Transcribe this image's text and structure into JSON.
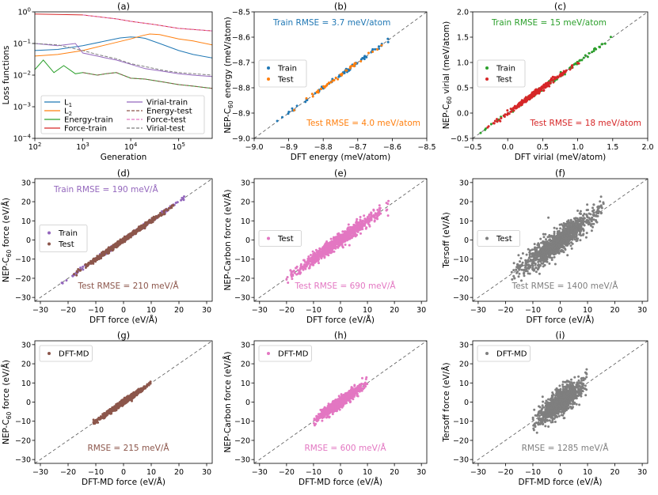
{
  "chart_data": [
    {
      "id": "a",
      "type": "line",
      "title": "(a)",
      "xlabel": "Generation",
      "ylabel": "Loss functions",
      "xscale": "log",
      "yscale": "log",
      "xlim": [
        100,
        500000
      ],
      "ylim": [
        0.0001,
        1
      ],
      "xticks": [
        100,
        1000,
        10000,
        100000
      ],
      "xtick_labels": [
        "10^2",
        "10^3",
        "10^4",
        "10^5"
      ],
      "yticks": [
        0.0001,
        0.001,
        0.01,
        0.1,
        1
      ],
      "ytick_labels": [
        "10^-4",
        "10^-3",
        "10^-2",
        "10^-1",
        "10^0"
      ],
      "legend": {
        "position": "lower-center",
        "entries": [
          {
            "label": "L1",
            "base": "L",
            "sub": "1",
            "color": "#1f77b4",
            "style": "solid"
          },
          {
            "label": "L2",
            "base": "L",
            "sub": "2",
            "color": "#ff7f0e",
            "style": "solid"
          },
          {
            "label": "Energy-train",
            "color": "#2ca02c",
            "style": "solid"
          },
          {
            "label": "Force-train",
            "color": "#d62728",
            "style": "solid"
          },
          {
            "label": "Virial-train",
            "color": "#9467bd",
            "style": "solid"
          },
          {
            "label": "Energy-test",
            "color": "#8c564b",
            "style": "dashed"
          },
          {
            "label": "Force-test",
            "color": "#e377c2",
            "style": "dashed"
          },
          {
            "label": "Virial-test",
            "color": "#7f7f7f",
            "style": "dashed"
          }
        ]
      },
      "series": [
        {
          "name": "L1",
          "color": "#1f77b4",
          "style": "solid",
          "x": [
            100,
            300,
            1000,
            3000,
            6000,
            10000,
            15000,
            20000,
            40000,
            100000,
            200000,
            500000
          ],
          "y": [
            0.06,
            0.065,
            0.085,
            0.12,
            0.15,
            0.16,
            0.155,
            0.145,
            0.1,
            0.06,
            0.045,
            0.035
          ]
        },
        {
          "name": "L2",
          "color": "#ff7f0e",
          "style": "solid",
          "x": [
            100,
            300,
            1000,
            3000,
            10000,
            18000,
            25000,
            40000,
            100000,
            200000,
            500000
          ],
          "y": [
            0.04,
            0.045,
            0.06,
            0.09,
            0.14,
            0.18,
            0.2,
            0.19,
            0.14,
            0.12,
            0.09
          ]
        },
        {
          "name": "Energy-train",
          "color": "#2ca02c",
          "style": "solid",
          "x": [
            100,
            150,
            250,
            400,
            700,
            1000,
            2000,
            3000,
            5000,
            10000,
            20000,
            50000,
            100000,
            200000,
            500000
          ],
          "y": [
            0.015,
            0.03,
            0.012,
            0.02,
            0.011,
            0.012,
            0.01,
            0.011,
            0.012,
            0.008,
            0.0075,
            0.006,
            0.005,
            0.0045,
            0.0038
          ]
        },
        {
          "name": "Force-train",
          "color": "#d62728",
          "style": "solid",
          "x": [
            100,
            1000,
            5000,
            10000,
            30000,
            100000,
            500000
          ],
          "y": [
            0.85,
            0.8,
            0.6,
            0.5,
            0.4,
            0.3,
            0.25
          ]
        },
        {
          "name": "Virial-train",
          "color": "#9467bd",
          "style": "solid",
          "x": [
            100,
            300,
            700,
            1000,
            2000,
            3000,
            5000,
            10000,
            20000,
            50000,
            100000,
            200000,
            500000
          ],
          "y": [
            0.1,
            0.085,
            0.1,
            0.05,
            0.04,
            0.035,
            0.03,
            0.022,
            0.016,
            0.013,
            0.011,
            0.01,
            0.009
          ]
        },
        {
          "name": "Energy-test",
          "color": "#8c564b",
          "style": "dashed",
          "x": [
            1000,
            2000,
            3000,
            5000,
            10000,
            20000,
            50000,
            100000,
            200000,
            500000
          ],
          "y": [
            0.012,
            0.01,
            0.011,
            0.012,
            0.008,
            0.0075,
            0.006,
            0.005,
            0.0045,
            0.0038
          ]
        },
        {
          "name": "Force-test",
          "color": "#e377c2",
          "style": "dashed",
          "x": [
            1000,
            5000,
            10000,
            30000,
            100000,
            500000
          ],
          "y": [
            0.8,
            0.6,
            0.5,
            0.4,
            0.3,
            0.25
          ]
        },
        {
          "name": "Virial-test",
          "color": "#7f7f7f",
          "style": "dashed",
          "x": [
            100,
            300,
            1000,
            2000,
            5000,
            10000,
            50000,
            100000,
            500000
          ],
          "y": [
            0.1,
            0.09,
            0.06,
            0.045,
            0.033,
            0.023,
            0.014,
            0.012,
            0.01
          ]
        }
      ]
    },
    {
      "id": "b",
      "type": "scatter",
      "title": "(b)",
      "xlabel": "DFT energy (meV/atom)",
      "ylabel": "NEP-C60 energy (meV/atom)",
      "ylabel_parts": [
        "NEP-C",
        "60",
        " energy (meV/atom)"
      ],
      "xlim": [
        -9.0,
        -8.5
      ],
      "ylim": [
        -9.0,
        -8.5
      ],
      "xticks": [
        -9.0,
        -8.9,
        -8.8,
        -8.7,
        -8.6,
        -8.5
      ],
      "xtick_labels": [
        "−9.0",
        "−8.9",
        "−8.8",
        "−8.7",
        "−8.6",
        "−8.5"
      ],
      "yticks": [
        -9.0,
        -8.9,
        -8.8,
        -8.7,
        -8.6,
        -8.5
      ],
      "ytick_labels": [
        "−9.0",
        "−8.9",
        "−8.8",
        "−8.7",
        "−8.6",
        "−8.5"
      ],
      "legend": {
        "position": "center-left",
        "entries": [
          {
            "label": "Train",
            "color": "#1f77b4"
          },
          {
            "label": "Test",
            "color": "#ff7f0e"
          }
        ]
      },
      "annotations": [
        {
          "text": "Train RMSE = 3.7 meV/atom",
          "color": "#1f77b4",
          "position": "top-left"
        },
        {
          "text": "Test RMSE = 4.0 meV/atom",
          "color": "#ff7f0e",
          "position": "bottom-right"
        }
      ],
      "series": [
        {
          "name": "Train",
          "color": "#1f77b4",
          "x_range": [
            -8.95,
            -8.53
          ],
          "spread": 0.004,
          "count": 70,
          "seed": 11
        },
        {
          "name": "Test",
          "color": "#ff7f0e",
          "x_range": [
            -8.92,
            -8.6
          ],
          "spread": 0.004,
          "count": 40,
          "seed": 12
        }
      ]
    },
    {
      "id": "c",
      "type": "scatter",
      "title": "(c)",
      "xlabel": "DFT virial (meV/atom)",
      "ylabel": "NEP-C60 virial (meV/atom)",
      "ylabel_parts": [
        "NEP-C",
        "60",
        " virial (meV/atom)"
      ],
      "xlim": [
        -0.5,
        2.0
      ],
      "ylim": [
        -0.5,
        2.0
      ],
      "xticks": [
        -0.5,
        0.0,
        0.5,
        1.0,
        1.5,
        2.0
      ],
      "xtick_labels": [
        "−0.5",
        "0.0",
        "0.5",
        "1.0",
        "1.5",
        "2.0"
      ],
      "yticks": [
        -0.5,
        0.0,
        0.5,
        1.0,
        1.5,
        2.0
      ],
      "ytick_labels": [
        "−0.5",
        "0.0",
        "0.5",
        "1.0",
        "1.5",
        "2.0"
      ],
      "legend": {
        "position": "center-left",
        "entries": [
          {
            "label": "Train",
            "color": "#2ca02c"
          },
          {
            "label": "Test",
            "color": "#d62728"
          }
        ]
      },
      "annotations": [
        {
          "text": "Train RMSE = 15 meV/atom",
          "color": "#2ca02c",
          "position": "top-left"
        },
        {
          "text": "Test RMSE = 18 meV/atom",
          "color": "#d62728",
          "position": "bottom-right"
        }
      ],
      "series": [
        {
          "name": "Train",
          "color": "#2ca02c",
          "x_range": [
            -0.4,
            1.65
          ],
          "spread": 0.02,
          "count": 120,
          "seed": 21
        },
        {
          "name": "Test",
          "color": "#d62728",
          "x_range": [
            -0.3,
            1.05
          ],
          "spread": 0.025,
          "count": 260,
          "seed": 22
        }
      ]
    },
    {
      "id": "d",
      "type": "scatter",
      "title": "(d)",
      "xlabel": "DFT force (eV/Å)",
      "ylabel": "NEP-C60 force (eV/Å)",
      "ylabel_parts": [
        "NEP-C",
        "60",
        " force (eV/Å)"
      ],
      "xlim": [
        -32,
        32
      ],
      "ylim": [
        -32,
        32
      ],
      "xticks": [
        -30,
        -20,
        -10,
        0,
        10,
        20,
        30
      ],
      "xtick_labels": [
        "−30",
        "−20",
        "−10",
        "0",
        "10",
        "20",
        "30"
      ],
      "yticks": [
        -30,
        -20,
        -10,
        0,
        10,
        20,
        30
      ],
      "ytick_labels": [
        "−30",
        "−20",
        "−10",
        "0",
        "10",
        "20",
        "30"
      ],
      "legend": {
        "position": "center-left",
        "entries": [
          {
            "label": "Train",
            "color": "#9467bd"
          },
          {
            "label": "Test",
            "color": "#8c564b"
          }
        ]
      },
      "annotations": [
        {
          "text": "Train RMSE = 190 meV/Å",
          "color": "#9467bd",
          "position": "top-left"
        },
        {
          "text": "Test RMSE = 210 meV/Å",
          "color": "#8c564b",
          "position": "bottom-center"
        }
      ],
      "series": [
        {
          "name": "Train",
          "color": "#9467bd",
          "x_range": [
            -23,
            26
          ],
          "spread": 0.5,
          "count": 250,
          "seed": 31
        },
        {
          "name": "Test",
          "color": "#8c564b",
          "x_range": [
            -18,
            18
          ],
          "spread": 0.55,
          "count": 700,
          "seed": 32
        }
      ]
    },
    {
      "id": "e",
      "type": "scatter",
      "title": "(e)",
      "xlabel": "DFT force (eV/Å)",
      "ylabel": "NEP-Carbon force (eV/Å)",
      "xlim": [
        -32,
        32
      ],
      "ylim": [
        -32,
        32
      ],
      "xticks": [
        -30,
        -20,
        -10,
        0,
        10,
        20,
        30
      ],
      "xtick_labels": [
        "−30",
        "−20",
        "−10",
        "0",
        "10",
        "20",
        "30"
      ],
      "yticks": [
        -30,
        -20,
        -10,
        0,
        10,
        20,
        30
      ],
      "ytick_labels": [
        "−30",
        "−20",
        "−10",
        "0",
        "10",
        "20",
        "30"
      ],
      "legend": {
        "position": "center-left",
        "entries": [
          {
            "label": "Test",
            "color": "#e377c2"
          }
        ]
      },
      "annotations": [
        {
          "text": "Test RMSE = 690 meV/Å",
          "color": "#e377c2",
          "position": "bottom-center"
        }
      ],
      "series": [
        {
          "name": "Test",
          "color": "#e377c2",
          "x_range": [
            -20,
            18
          ],
          "spread": 1.6,
          "count": 900,
          "seed": 41
        }
      ]
    },
    {
      "id": "f",
      "type": "scatter",
      "title": "(f)",
      "xlabel": "DFT force (eV/Å)",
      "ylabel": "Tersoff (eV/Å)",
      "xlim": [
        -32,
        32
      ],
      "ylim": [
        -32,
        32
      ],
      "xticks": [
        -30,
        -20,
        -10,
        0,
        10,
        20,
        30
      ],
      "xtick_labels": [
        "−30",
        "−20",
        "−10",
        "0",
        "10",
        "20",
        "30"
      ],
      "yticks": [
        -30,
        -20,
        -10,
        0,
        10,
        20,
        30
      ],
      "ytick_labels": [
        "−30",
        "−20",
        "−10",
        "0",
        "10",
        "20",
        "30"
      ],
      "legend": {
        "position": "center-left",
        "entries": [
          {
            "label": "Test",
            "color": "#7f7f7f"
          }
        ]
      },
      "annotations": [
        {
          "text": "Test RMSE = 1400 meV/Å",
          "color": "#7f7f7f",
          "position": "bottom-center"
        }
      ],
      "series": [
        {
          "name": "Test",
          "color": "#7f7f7f",
          "x_range": [
            -18,
            16
          ],
          "spread": 3.2,
          "count": 1100,
          "seed": 51
        }
      ]
    },
    {
      "id": "g",
      "type": "scatter",
      "title": "(g)",
      "xlabel": "DFT-MD force (eV/Å)",
      "ylabel": "NEP-C60 force (eV/Å)",
      "ylabel_parts": [
        "NEP-C",
        "60",
        " force (eV/Å)"
      ],
      "xlim": [
        -32,
        32
      ],
      "ylim": [
        -32,
        32
      ],
      "xticks": [
        -30,
        -20,
        -10,
        0,
        10,
        20,
        30
      ],
      "xtick_labels": [
        "−30",
        "−20",
        "−10",
        "0",
        "10",
        "20",
        "30"
      ],
      "yticks": [
        -30,
        -20,
        -10,
        0,
        10,
        20,
        30
      ],
      "ytick_labels": [
        "−30",
        "−20",
        "−10",
        "0",
        "10",
        "20",
        "30"
      ],
      "legend": {
        "position": "top-left",
        "entries": [
          {
            "label": "DFT-MD",
            "color": "#8c564b"
          }
        ]
      },
      "annotations": [
        {
          "text": "RMSE = 215 meV/Å",
          "color": "#8c564b",
          "position": "bottom-center"
        }
      ],
      "series": [
        {
          "name": "DFT-MD",
          "color": "#8c564b",
          "x_range": [
            -11,
            10
          ],
          "spread": 0.6,
          "count": 800,
          "seed": 61
        }
      ]
    },
    {
      "id": "h",
      "type": "scatter",
      "title": "(h)",
      "xlabel": "DFT-MD force (eV/Å)",
      "ylabel": "NEP-Carbon force (eV/Å)",
      "xlim": [
        -32,
        32
      ],
      "ylim": [
        -32,
        32
      ],
      "xticks": [
        -30,
        -20,
        -10,
        0,
        10,
        20,
        30
      ],
      "xtick_labels": [
        "−30",
        "−20",
        "−10",
        "0",
        "10",
        "20",
        "30"
      ],
      "yticks": [
        -30,
        -20,
        -10,
        0,
        10,
        20,
        30
      ],
      "ytick_labels": [
        "−30",
        "−20",
        "−10",
        "0",
        "10",
        "20",
        "30"
      ],
      "legend": {
        "position": "top-left",
        "entries": [
          {
            "label": "DFT-MD",
            "color": "#e377c2"
          }
        ]
      },
      "annotations": [
        {
          "text": "RMSE = 600 meV/Å",
          "color": "#e377c2",
          "position": "bottom-center"
        }
      ],
      "series": [
        {
          "name": "DFT-MD",
          "color": "#e377c2",
          "x_range": [
            -10,
            10
          ],
          "spread": 1.4,
          "count": 900,
          "seed": 71
        }
      ]
    },
    {
      "id": "i",
      "type": "scatter",
      "title": "(i)",
      "xlabel": "DFT-MD force (eV/Å)",
      "ylabel": "Tersoff force (eV/Å)",
      "xlim": [
        -32,
        32
      ],
      "ylim": [
        -32,
        32
      ],
      "xticks": [
        -30,
        -20,
        -10,
        0,
        10,
        20,
        30
      ],
      "xtick_labels": [
        "−30",
        "−20",
        "−10",
        "0",
        "10",
        "20",
        "30"
      ],
      "yticks": [
        -30,
        -20,
        -10,
        0,
        10,
        20,
        30
      ],
      "ytick_labels": [
        "−30",
        "−20",
        "−10",
        "0",
        "10",
        "20",
        "30"
      ],
      "legend": {
        "position": "top-left",
        "entries": [
          {
            "label": "DFT-MD",
            "color": "#7f7f7f"
          }
        ]
      },
      "annotations": [
        {
          "text": "RMSE = 1285 meV/Å",
          "color": "#7f7f7f",
          "position": "bottom-center"
        }
      ],
      "series": [
        {
          "name": "DFT-MD",
          "color": "#7f7f7f",
          "x_range": [
            -10,
            10
          ],
          "spread": 3.0,
          "count": 1200,
          "seed": 81
        }
      ]
    }
  ]
}
